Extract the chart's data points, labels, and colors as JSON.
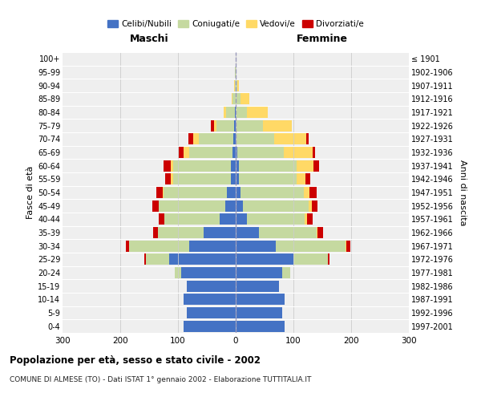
{
  "age_groups": [
    "0-4",
    "5-9",
    "10-14",
    "15-19",
    "20-24",
    "25-29",
    "30-34",
    "35-39",
    "40-44",
    "45-49",
    "50-54",
    "55-59",
    "60-64",
    "65-69",
    "70-74",
    "75-79",
    "80-84",
    "85-89",
    "90-94",
    "95-99",
    "100+"
  ],
  "birth_years": [
    "1997-2001",
    "1992-1996",
    "1987-1991",
    "1982-1986",
    "1977-1981",
    "1972-1976",
    "1967-1971",
    "1962-1966",
    "1957-1961",
    "1952-1956",
    "1947-1951",
    "1942-1946",
    "1937-1941",
    "1932-1936",
    "1927-1931",
    "1922-1926",
    "1917-1921",
    "1912-1916",
    "1907-1911",
    "1902-1906",
    "≤ 1901"
  ],
  "maschi": {
    "celibe": [
      90,
      85,
      90,
      85,
      95,
      115,
      80,
      55,
      28,
      18,
      15,
      9,
      8,
      5,
      4,
      3,
      1,
      0,
      0,
      0,
      0
    ],
    "coniugato": [
      0,
      0,
      0,
      0,
      10,
      40,
      105,
      80,
      95,
      115,
      110,
      100,
      100,
      75,
      60,
      30,
      15,
      5,
      2,
      1,
      0
    ],
    "vedovo": [
      0,
      0,
      0,
      0,
      0,
      0,
      0,
      0,
      1,
      1,
      2,
      3,
      5,
      10,
      10,
      5,
      5,
      2,
      1,
      0,
      0
    ],
    "divorziato": [
      0,
      0,
      0,
      0,
      0,
      3,
      5,
      8,
      10,
      10,
      10,
      10,
      12,
      8,
      8,
      5,
      0,
      0,
      0,
      0,
      0
    ]
  },
  "femmine": {
    "nubile": [
      85,
      80,
      85,
      75,
      80,
      100,
      70,
      40,
      20,
      12,
      8,
      6,
      5,
      3,
      2,
      2,
      0,
      0,
      0,
      0,
      0
    ],
    "coniugata": [
      0,
      0,
      0,
      0,
      15,
      60,
      120,
      100,
      100,
      115,
      110,
      100,
      100,
      80,
      65,
      45,
      20,
      8,
      3,
      1,
      0
    ],
    "vedova": [
      0,
      0,
      0,
      0,
      0,
      0,
      1,
      2,
      3,
      5,
      10,
      15,
      30,
      50,
      55,
      50,
      35,
      15,
      3,
      1,
      0
    ],
    "divorziata": [
      0,
      0,
      0,
      0,
      0,
      3,
      8,
      10,
      10,
      10,
      12,
      8,
      10,
      5,
      5,
      0,
      0,
      0,
      0,
      0,
      0
    ]
  },
  "colors": {
    "celibe": "#4472c4",
    "coniugato": "#c5d9a0",
    "vedovo": "#ffd966",
    "divorziato": "#cc0000"
  },
  "xlim": [
    -300,
    300
  ],
  "xticks": [
    -300,
    -200,
    -100,
    0,
    100,
    200,
    300
  ],
  "xticklabels": [
    "300",
    "200",
    "100",
    "0",
    "100",
    "200",
    "300"
  ],
  "title": "Popolazione per età, sesso e stato civile - 2002",
  "subtitle": "COMUNE DI ALMESE (TO) - Dati ISTAT 1° gennaio 2002 - Elaborazione TUTTITALIA.IT",
  "ylabel_left": "Fasce di età",
  "ylabel_right": "Anni di nascita",
  "legend_labels": [
    "Celibi/Nubili",
    "Coniugati/e",
    "Vedovi/e",
    "Divorziati/e"
  ],
  "bg_color": "#ffffff",
  "plot_bg_color": "#efefef"
}
